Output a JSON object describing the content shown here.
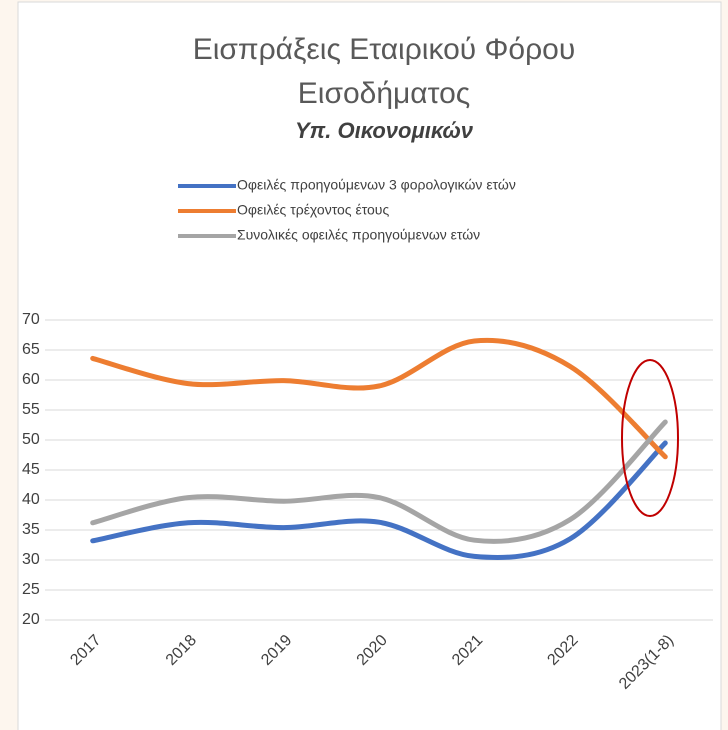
{
  "chart_data": {
    "type": "line",
    "title": "Εισπράξεις Εταιρικού Φόρου Εισοδήματος",
    "subtitle": "Υπ. Οικονομικών",
    "categories": [
      "2017",
      "2018",
      "2019",
      "2020",
      "2021",
      "2022",
      "2023(1-8)"
    ],
    "series": [
      {
        "name": "Οφειλές προηγούμενων 3 φορολογικών ετών",
        "color": "#4472c4",
        "values": [
          33.2,
          36.2,
          35.4,
          36.3,
          30.6,
          33.5,
          49.5
        ]
      },
      {
        "name": "Οφειλές τρέχοντος έτους",
        "color": "#ed7d31",
        "values": [
          63.6,
          59.4,
          59.9,
          59.0,
          66.5,
          62.3,
          47.2
        ]
      },
      {
        "name": "Συνολικές οφειλές προηγούμενων ετών",
        "color": "#a5a5a5",
        "values": [
          36.2,
          40.4,
          39.8,
          40.4,
          33.3,
          36.7,
          53.0
        ]
      }
    ],
    "ylim": [
      20,
      70
    ],
    "yticks": [
      20,
      25,
      30,
      35,
      40,
      45,
      50,
      55,
      60,
      65,
      70
    ],
    "grid": true,
    "smooth": true,
    "legend": "top"
  }
}
